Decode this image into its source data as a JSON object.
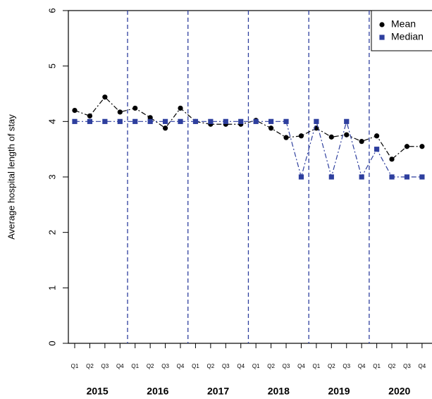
{
  "chart_data": {
    "type": "line",
    "y_label": "Average hospital length of stay",
    "categories": [
      "Q1",
      "Q2",
      "Q3",
      "Q4",
      "Q1",
      "Q2",
      "Q3",
      "Q4",
      "Q1",
      "Q2",
      "Q3",
      "Q4",
      "Q1",
      "Q2",
      "Q3",
      "Q4",
      "Q1",
      "Q2",
      "Q3",
      "Q4",
      "Q1",
      "Q2",
      "Q3",
      "Q4"
    ],
    "groups": [
      "2015",
      "2016",
      "2017",
      "2018",
      "2019",
      "2020"
    ],
    "series": [
      {
        "name": "Mean",
        "color": "#000000",
        "marker": "circle",
        "values": [
          4.2,
          4.1,
          4.44,
          4.17,
          4.24,
          4.07,
          3.88,
          4.24,
          4.0,
          3.95,
          3.95,
          3.95,
          4.02,
          3.88,
          3.71,
          3.74,
          3.88,
          3.72,
          3.76,
          3.64,
          3.74,
          3.32,
          3.55,
          3.55
        ]
      },
      {
        "name": "Median",
        "color": "#2e3f9e",
        "marker": "square",
        "values": [
          4,
          4,
          4,
          4,
          4,
          4,
          4,
          4,
          4,
          4,
          4,
          4,
          4,
          4,
          4,
          3,
          4,
          3,
          4,
          3,
          3.5,
          3,
          3,
          3
        ]
      }
    ],
    "ylim": [
      0,
      6
    ],
    "yticks": [
      0,
      1,
      2,
      3,
      4,
      5,
      6
    ],
    "legend": "topright"
  }
}
